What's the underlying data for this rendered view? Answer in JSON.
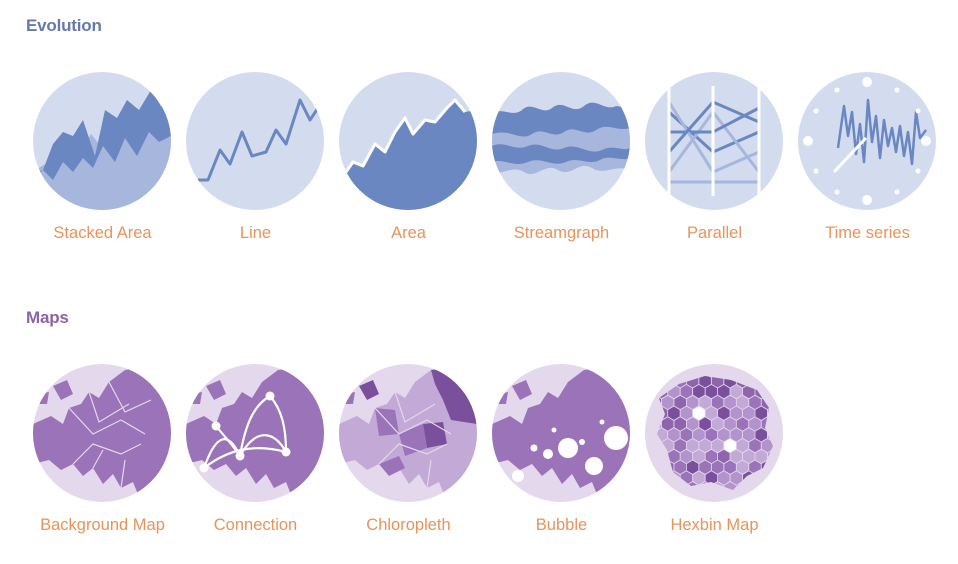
{
  "sections": [
    {
      "title": "Evolution",
      "items": [
        {
          "label": "Stacked Area",
          "icon": "stacked-area-chart-icon"
        },
        {
          "label": "Line",
          "icon": "line-chart-icon"
        },
        {
          "label": "Area",
          "icon": "area-chart-icon"
        },
        {
          "label": "Streamgraph",
          "icon": "streamgraph-chart-icon"
        },
        {
          "label": "Parallel",
          "icon": "parallel-coordinates-chart-icon"
        },
        {
          "label": "Time series",
          "icon": "time-series-chart-icon"
        }
      ]
    },
    {
      "title": "Maps",
      "items": [
        {
          "label": "Background Map",
          "icon": "background-map-icon"
        },
        {
          "label": "Connection",
          "icon": "connection-map-icon"
        },
        {
          "label": "Chloropleth",
          "icon": "chloropleth-map-icon"
        },
        {
          "label": "Bubble",
          "icon": "bubble-map-icon"
        },
        {
          "label": "Hexbin Map",
          "icon": "hexbin-map-icon"
        }
      ]
    }
  ],
  "colors": {
    "evolution_title": "#6679ad",
    "maps_title": "#8a64a8",
    "label": "#e8935a",
    "evolution_circle": "#d3dcee",
    "evolution_light": "#a6b6dc",
    "evolution_dark": "#6a87c2",
    "maps_circle": "#e4d8ec",
    "maps_land": "#9b73b8",
    "maps_light": "#c3a9d6",
    "maps_dark": "#7a4f9c"
  }
}
